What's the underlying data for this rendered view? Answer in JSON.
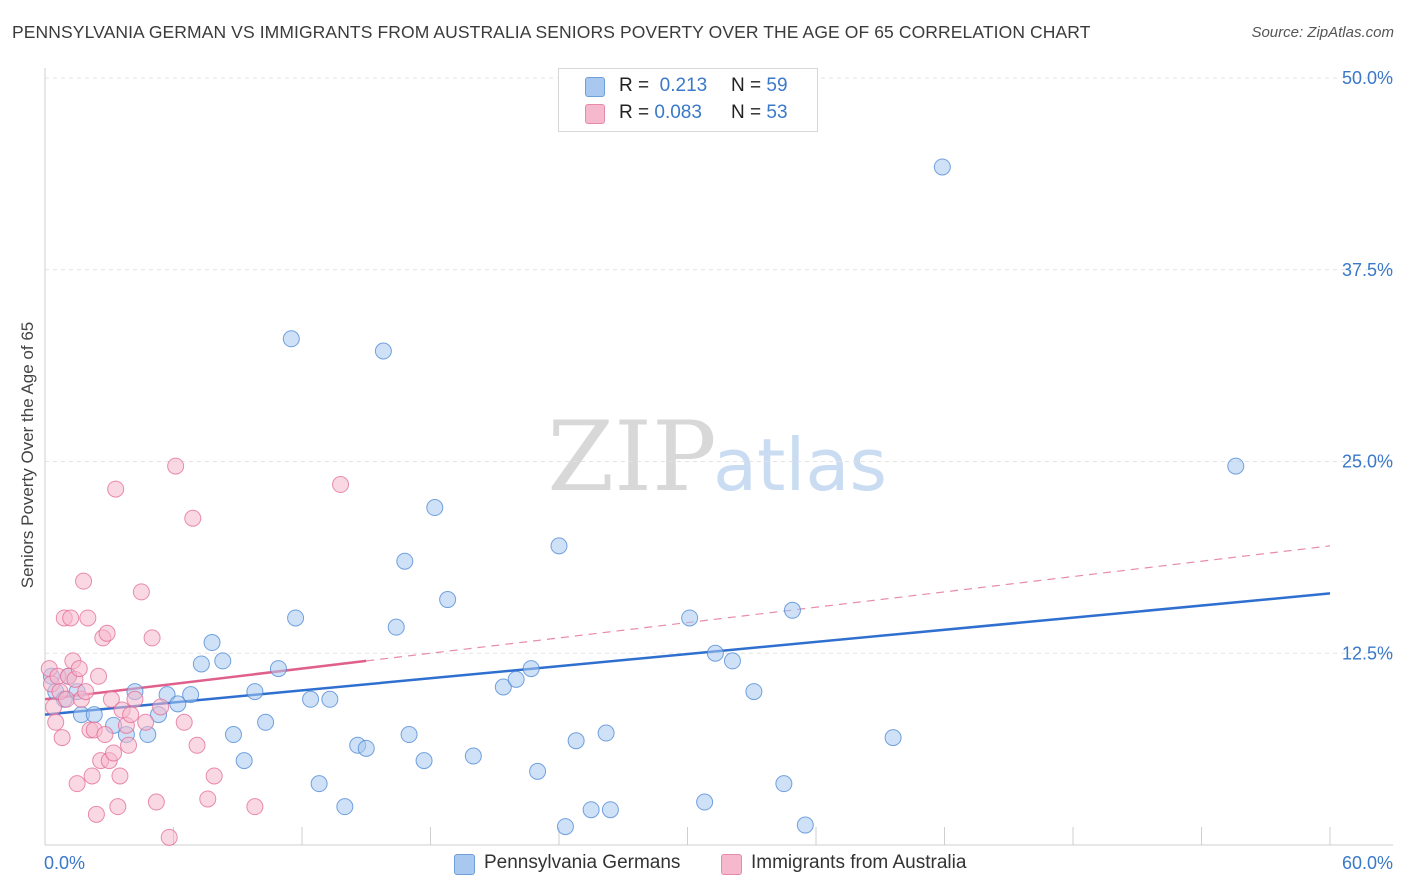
{
  "title": "PENNSYLVANIA GERMAN VS IMMIGRANTS FROM AUSTRALIA SENIORS POVERTY OVER THE AGE OF 65 CORRELATION CHART",
  "source": "Source: ZipAtlas.com",
  "watermark": {
    "part1": "ZIP",
    "part2": "atlas"
  },
  "legend_top": {
    "rows": [
      {
        "r_label": "R =",
        "r_value": "0.213",
        "n_label": "N =",
        "n_value": "59",
        "color": "#a8c8f0"
      },
      {
        "r_label": "R =",
        "r_value": "0.083",
        "n_label": "N =",
        "n_value": "53",
        "color": "#f5b8cc"
      }
    ]
  },
  "legend_bottom": [
    {
      "label": "Pennsylvania Germans",
      "color": "#a8c8f0"
    },
    {
      "label": "Immigrants from Australia",
      "color": "#f5b8cc"
    }
  ],
  "chart_data": {
    "type": "scatter",
    "title": "PENNSYLVANIA GERMAN VS IMMIGRANTS FROM AUSTRALIA SENIORS POVERTY OVER THE AGE OF 65 CORRELATION CHART",
    "xlabel": "",
    "ylabel": "Seniors Poverty Over the Age of 65",
    "xlim": [
      0,
      60
    ],
    "ylim": [
      0,
      50
    ],
    "x_tick_labels": [
      "0.0%",
      "60.0%"
    ],
    "y_ticks": [
      12.5,
      25.0,
      37.5,
      50.0
    ],
    "y_tick_labels": [
      "12.5%",
      "25.0%",
      "37.5%",
      "50.0%"
    ],
    "grid": true,
    "series": [
      {
        "name": "Pennsylvania Germans",
        "color": "#4a86d4",
        "fill": "#a8c8f0",
        "trend": {
          "x0": 0,
          "y0": 8.5,
          "x1": 60,
          "y1": 16.4
        },
        "points": [
          [
            0.3,
            11.0
          ],
          [
            0.5,
            10.0
          ],
          [
            0.9,
            9.5
          ],
          [
            1.1,
            11.0
          ],
          [
            1.5,
            10.0
          ],
          [
            1.7,
            8.5
          ],
          [
            2.3,
            8.5
          ],
          [
            3.2,
            7.8
          ],
          [
            3.8,
            7.2
          ],
          [
            4.2,
            10.0
          ],
          [
            4.8,
            7.2
          ],
          [
            5.3,
            8.5
          ],
          [
            5.7,
            9.8
          ],
          [
            6.2,
            9.2
          ],
          [
            6.8,
            9.8
          ],
          [
            7.3,
            11.8
          ],
          [
            7.8,
            13.2
          ],
          [
            8.3,
            12.0
          ],
          [
            8.8,
            7.2
          ],
          [
            9.3,
            5.5
          ],
          [
            9.8,
            10.0
          ],
          [
            10.3,
            8.0
          ],
          [
            10.9,
            11.5
          ],
          [
            11.5,
            33.0
          ],
          [
            11.7,
            14.8
          ],
          [
            12.4,
            9.5
          ],
          [
            12.8,
            4.0
          ],
          [
            13.3,
            9.5
          ],
          [
            14.0,
            2.5
          ],
          [
            14.6,
            6.5
          ],
          [
            15.0,
            6.3
          ],
          [
            15.8,
            32.2
          ],
          [
            16.4,
            14.2
          ],
          [
            16.8,
            18.5
          ],
          [
            17.0,
            7.2
          ],
          [
            17.7,
            5.5
          ],
          [
            18.2,
            22.0
          ],
          [
            18.8,
            16.0
          ],
          [
            20.0,
            5.8
          ],
          [
            21.4,
            10.3
          ],
          [
            22.0,
            10.8
          ],
          [
            22.7,
            11.5
          ],
          [
            23.0,
            4.8
          ],
          [
            24.0,
            19.5
          ],
          [
            24.3,
            1.2
          ],
          [
            24.8,
            6.8
          ],
          [
            25.5,
            2.3
          ],
          [
            26.2,
            7.3
          ],
          [
            26.4,
            2.3
          ],
          [
            30.1,
            14.8
          ],
          [
            30.8,
            2.8
          ],
          [
            31.3,
            12.5
          ],
          [
            32.1,
            12.0
          ],
          [
            33.1,
            10.0
          ],
          [
            34.5,
            4.0
          ],
          [
            34.9,
            15.3
          ],
          [
            35.5,
            1.3
          ],
          [
            39.6,
            7.0
          ],
          [
            41.9,
            44.2
          ],
          [
            55.6,
            24.7
          ]
        ]
      },
      {
        "name": "Immigrants from Australia",
        "color": "#e26a94",
        "fill": "#f5b8cc",
        "trend": {
          "x0": 0,
          "y0": 9.5,
          "x1": 15,
          "y1": 12.0,
          "dash_to": {
            "x": 60,
            "y": 19.5
          }
        },
        "points": [
          [
            0.2,
            11.5
          ],
          [
            0.3,
            10.5
          ],
          [
            0.4,
            9.0
          ],
          [
            0.5,
            8.0
          ],
          [
            0.6,
            11.0
          ],
          [
            0.7,
            10.0
          ],
          [
            0.8,
            7.0
          ],
          [
            0.9,
            14.8
          ],
          [
            1.0,
            9.5
          ],
          [
            1.1,
            11.0
          ],
          [
            1.2,
            14.8
          ],
          [
            1.3,
            12.0
          ],
          [
            1.4,
            10.8
          ],
          [
            1.5,
            4.0
          ],
          [
            1.6,
            11.5
          ],
          [
            1.7,
            9.5
          ],
          [
            1.8,
            17.2
          ],
          [
            1.9,
            10.0
          ],
          [
            2.0,
            14.8
          ],
          [
            2.1,
            7.5
          ],
          [
            2.2,
            4.5
          ],
          [
            2.3,
            7.5
          ],
          [
            2.4,
            2.0
          ],
          [
            2.5,
            11.0
          ],
          [
            2.6,
            5.5
          ],
          [
            2.7,
            13.5
          ],
          [
            2.8,
            7.2
          ],
          [
            2.9,
            13.8
          ],
          [
            3.0,
            5.5
          ],
          [
            3.1,
            9.5
          ],
          [
            3.2,
            6.0
          ],
          [
            3.3,
            23.2
          ],
          [
            3.4,
            2.5
          ],
          [
            3.5,
            4.5
          ],
          [
            3.6,
            8.8
          ],
          [
            3.8,
            7.8
          ],
          [
            3.9,
            6.5
          ],
          [
            4.0,
            8.5
          ],
          [
            4.2,
            9.5
          ],
          [
            4.5,
            16.5
          ],
          [
            4.7,
            8.0
          ],
          [
            5.0,
            13.5
          ],
          [
            5.2,
            2.8
          ],
          [
            5.4,
            9.0
          ],
          [
            5.8,
            0.5
          ],
          [
            6.1,
            24.7
          ],
          [
            6.5,
            8.0
          ],
          [
            6.9,
            21.3
          ],
          [
            7.1,
            6.5
          ],
          [
            7.6,
            3.0
          ],
          [
            7.9,
            4.5
          ],
          [
            9.8,
            2.5
          ],
          [
            13.8,
            23.5
          ]
        ]
      }
    ]
  }
}
